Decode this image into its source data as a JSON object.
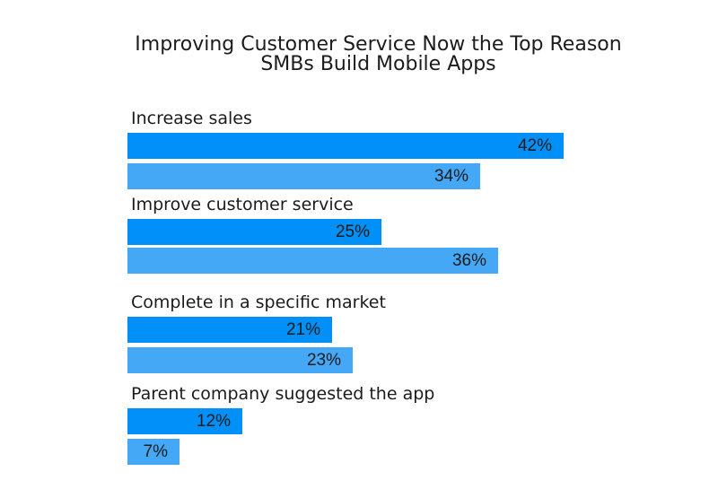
{
  "title": {
    "line1": "Improving Customer Service Now the Top Reason",
    "line2": "SMBs Build Mobile Apps"
  },
  "chart_data": {
    "type": "bar",
    "orientation": "horizontal",
    "title": "Improving Customer Service Now the Top Reason SMBs Build Mobile Apps",
    "categories": [
      "Increase sales",
      "Improve customer service",
      "Complete in a specific market",
      "Parent company suggested the app"
    ],
    "series": [
      {
        "name": "primary",
        "color": "#0090f7",
        "values": [
          42,
          25,
          21,
          12
        ]
      },
      {
        "name": "secondary",
        "color": "#45a8f7",
        "values": [
          34,
          36,
          23,
          7
        ]
      }
    ],
    "value_suffix": "%",
    "value_labels": [
      "42%",
      "34%",
      "25%",
      "36%",
      "21%",
      "23%",
      "12%",
      "7%"
    ],
    "xlim": [
      0,
      56
    ],
    "grid": false,
    "legend": false,
    "value_label_position": "inside-end"
  }
}
